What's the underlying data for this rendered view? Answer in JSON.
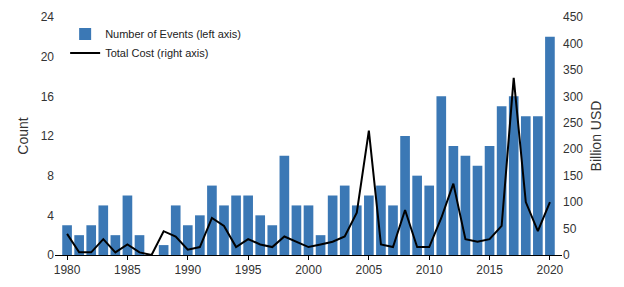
{
  "chart_data": {
    "type": "bar",
    "x": [
      1980,
      1981,
      1982,
      1983,
      1984,
      1985,
      1986,
      1987,
      1988,
      1989,
      1990,
      1991,
      1992,
      1993,
      1994,
      1995,
      1996,
      1997,
      1998,
      1999,
      2000,
      2001,
      2002,
      2003,
      2004,
      2005,
      2006,
      2007,
      2008,
      2009,
      2010,
      2011,
      2012,
      2013,
      2014,
      2015,
      2016,
      2017,
      2018,
      2019,
      2020
    ],
    "series": [
      {
        "name": "Number of Events (left axis)",
        "type": "bar",
        "color": "#3b78b5",
        "values": [
          3,
          2,
          3,
          5,
          2,
          6,
          2,
          0,
          1,
          5,
          3,
          4,
          7,
          5,
          6,
          6,
          4,
          3,
          10,
          5,
          5,
          2,
          6,
          7,
          5,
          6,
          7,
          5,
          12,
          8,
          7,
          16,
          11,
          10,
          9,
          11,
          15,
          16,
          14,
          14,
          22
        ]
      },
      {
        "name": "Total Cost (right axis)",
        "type": "line",
        "axis": "y2",
        "color": "#000000",
        "line_style": "solid",
        "values": [
          40,
          5,
          5,
          30,
          5,
          20,
          5,
          0,
          45,
          35,
          10,
          15,
          70,
          55,
          15,
          30,
          20,
          15,
          35,
          25,
          15,
          20,
          25,
          35,
          80,
          235,
          20,
          15,
          85,
          15,
          15,
          70,
          135,
          30,
          25,
          30,
          55,
          335,
          100,
          45,
          100
        ]
      }
    ],
    "xlim": [
      1979,
      2021
    ],
    "xticks": [
      1980,
      1985,
      1990,
      1995,
      2000,
      2005,
      2010,
      2015,
      2020
    ],
    "ylim": [
      0,
      24
    ],
    "yticks": [
      0,
      4,
      8,
      12,
      16,
      20,
      24
    ],
    "y2lim": [
      0,
      450
    ],
    "y2ticks": [
      0,
      50,
      100,
      150,
      200,
      250,
      300,
      350,
      400,
      450
    ],
    "y_label": "Count",
    "y2_label": "Billion USD",
    "legend": "upper left",
    "grid": false
  }
}
